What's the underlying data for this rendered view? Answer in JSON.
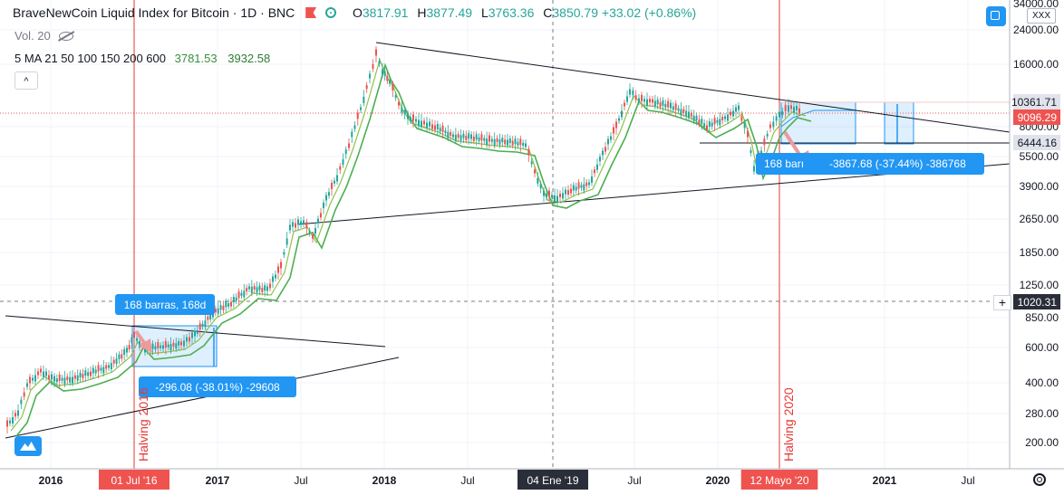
{
  "legend": {
    "title": "BraveNewCoin Liquid Index for Bitcoin",
    "interval": "1D",
    "exchange": "BNC",
    "ohlc": [
      {
        "label": "O",
        "value": "3817.91"
      },
      {
        "label": "H",
        "value": "3877.49"
      },
      {
        "label": "L",
        "value": "3763.36"
      },
      {
        "label": "C",
        "value": "3850.79"
      }
    ],
    "change": "+33.02 (+0.86%)",
    "volume": "Vol. 20",
    "ma_label": "5 MA 21 50 100 150 200 600",
    "ma_value1": "3781.53",
    "ma_value2": "3932.58",
    "collapse_glyph": "^"
  },
  "currency_button": "XXX",
  "price_axis": {
    "ticks": [
      "34000.00",
      "24000.00",
      "16000.00",
      "8000.00",
      "5500.00",
      "3900.00",
      "2650.00",
      "1850.00",
      "1250.00",
      "850.00",
      "600.00",
      "400.00",
      "280.00",
      "200.00"
    ],
    "badges": [
      {
        "label": "10361.71",
        "style": "light"
      },
      {
        "label": "9096.29",
        "style": "red"
      },
      {
        "label": "6444.16",
        "style": "light"
      },
      {
        "label": "1020.31",
        "style": "dark"
      }
    ]
  },
  "time_axis": {
    "ticks": [
      "2016",
      "Jul",
      "2017",
      "Jul",
      "2018",
      "Jul",
      "Jul",
      "2020",
      "2021",
      "Jul"
    ],
    "badges": [
      {
        "label": "01 Jul '16",
        "style": "red"
      },
      {
        "label": "04 Ene '19",
        "style": "dark"
      },
      {
        "label": "12 Mayo '20",
        "style": "red"
      }
    ]
  },
  "annotations": {
    "halving_2016": "Halving 2016",
    "halving_2020": "Halving 2020",
    "bars_2016": "168 barras, 168d",
    "change_2016": "-296.08 (-38.01%) -29608",
    "bars_2020": "168 barı",
    "change_2020": "-3867.68 (-37.44%) -386768"
  },
  "icons": {
    "flag": "flag-icon",
    "status": "status-dot-icon",
    "visibility": "eye-off-icon",
    "settings": "settings-icon",
    "logo": "tradingview-logo-icon",
    "gear": "gear-icon",
    "plus": "plus-icon"
  },
  "colors": {
    "up": "#26a69a",
    "down": "#ef5350",
    "ma_fast": "#8bc34a",
    "ma_slow": "#4caf50",
    "halving_line": "#e53935",
    "range_box": "#2196f3",
    "badge_dark": "#2a2e39"
  }
}
